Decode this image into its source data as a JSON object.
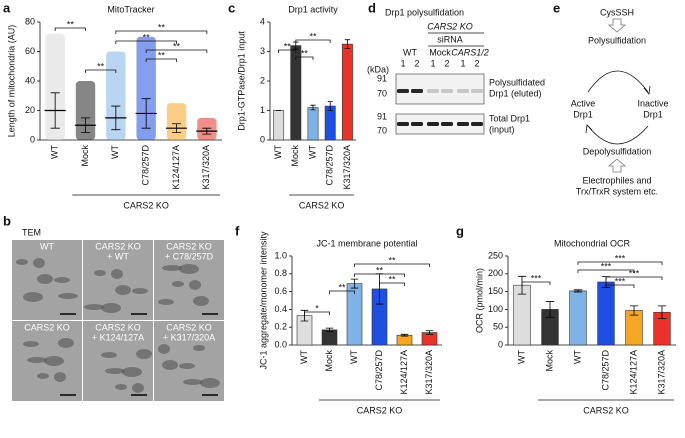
{
  "panel_labels": [
    "a",
    "b",
    "c",
    "d",
    "e",
    "f",
    "g"
  ],
  "chart_data": [
    {
      "type": "strip",
      "title": "MitoTracker",
      "ylabel": "Length of mitochondria (AU)",
      "categories": [
        "WT",
        "Mock",
        "WT",
        "C78/257D",
        "K124/127A",
        "K317/320A"
      ],
      "values": [
        20,
        10,
        15,
        18,
        8,
        6
      ],
      "errors": [
        12,
        5,
        8,
        10,
        3,
        2
      ],
      "max": [
        72,
        40,
        60,
        70,
        25,
        15
      ],
      "colors": [
        "#d9d9d9",
        "#222222",
        "#7fb2e5",
        "#1f4fe0",
        "#f5a623",
        "#e8322a"
      ],
      "ylim": [
        0,
        80
      ],
      "yticks": [
        0,
        20,
        40,
        60,
        80
      ],
      "group_label": "CARS2 KO",
      "significance": [
        "**",
        "**",
        "**",
        "**",
        "**",
        "**"
      ]
    },
    {
      "type": "bar",
      "title": "Drp1 activity",
      "ylabel": "Drp1-GTPase/Drp1 input",
      "categories": [
        "WT",
        "Mock",
        "WT",
        "C78/257D",
        "K317/320A"
      ],
      "values": [
        1,
        3.2,
        1.1,
        1.15,
        3.25
      ],
      "errors": [
        0,
        0.12,
        0.08,
        0.15,
        0.15
      ],
      "colors": [
        "#dddddd",
        "#333333",
        "#7fb2e5",
        "#1f4fe0",
        "#e8322a"
      ],
      "ylim": [
        0,
        4
      ],
      "yticks": [
        0,
        1,
        2,
        3,
        4
      ],
      "group_label": "CARS2 KO",
      "significance": [
        "**",
        "**",
        "**"
      ]
    },
    {
      "type": "bar",
      "title": "JC-1 membrane potential",
      "ylabel": "JC-1 aggregate/monomer intensity",
      "categories": [
        "WT",
        "Mock",
        "WT",
        "C78/257D",
        "K124/127A",
        "K317/320A"
      ],
      "values": [
        0.33,
        0.17,
        0.69,
        0.63,
        0.11,
        0.14
      ],
      "errors": [
        0.06,
        0.02,
        0.05,
        0.17,
        0.01,
        0.02
      ],
      "colors": [
        "#dddddd",
        "#333333",
        "#7fb2e5",
        "#1f4fe0",
        "#f5a623",
        "#e8322a"
      ],
      "ylim": [
        0,
        1
      ],
      "yticks": [
        {
          "value": 0,
          "label": "0.0"
        },
        0.2,
        0.4,
        0.6,
        0.8,
        {
          "value": 1,
          "label": "1.0"
        }
      ],
      "group_label": "CARS2 KO",
      "significance": [
        "*",
        "**",
        "**",
        "**",
        "**"
      ]
    },
    {
      "type": "bar",
      "title": "Mitochondrial OCR",
      "ylabel": "OCR (pmol/min)",
      "categories": [
        "WT",
        "Mock",
        "WT",
        "C78/257D",
        "K124/127A",
        "K317/320A"
      ],
      "values": [
        168,
        100,
        152,
        177,
        97,
        92
      ],
      "errors": [
        25,
        22,
        3,
        15,
        13,
        18
      ],
      "colors": [
        "#dddddd",
        "#333333",
        "#7fb2e5",
        "#1f4fe0",
        "#f5a623",
        "#e8322a"
      ],
      "ylim": [
        0,
        250
      ],
      "yticks": [
        0,
        50,
        100,
        150,
        200,
        250
      ],
      "group_label": "CARS2 KO",
      "significance": [
        "***",
        "***",
        "***",
        "***",
        "***"
      ]
    }
  ],
  "tem": {
    "title": "TEM",
    "images": [
      [
        "WT"
      ],
      [
        "CARS2 KO",
        "+ WT"
      ],
      [
        "CARS2 KO",
        "+ C78/257D"
      ],
      [
        "CARS2  KO"
      ],
      [
        "CARS2 KO",
        "+ K124/127A"
      ],
      [
        "CARS2 KO",
        "+ K317/320A"
      ]
    ]
  },
  "blot": {
    "title": "Drp1 polysulfidation",
    "ko_label": "CARS2 KO",
    "sirna_label": "siRNA",
    "groups": [
      "WT",
      "Mock",
      "CARS1/2"
    ],
    "lanes": [
      "1",
      "2",
      "1",
      "2",
      "1",
      "2"
    ],
    "unit": "(kDa)",
    "markers_top": [
      91,
      70
    ],
    "markers_bottom": [
      91,
      70
    ],
    "label_top": [
      "Polysulfidated",
      "Drp1 (eluted)"
    ],
    "label_bottom": [
      "Total Drp1",
      "(input)"
    ]
  },
  "diagram": {
    "source": "CysSSH",
    "forward": "Polysulfidation",
    "active": [
      "Active",
      "Drp1"
    ],
    "inactive": [
      "Inactive",
      "Drp1"
    ],
    "reverse": "Depolysulfidation",
    "agents": [
      "Electrophiles and",
      "Trx/TrxR system etc."
    ]
  }
}
